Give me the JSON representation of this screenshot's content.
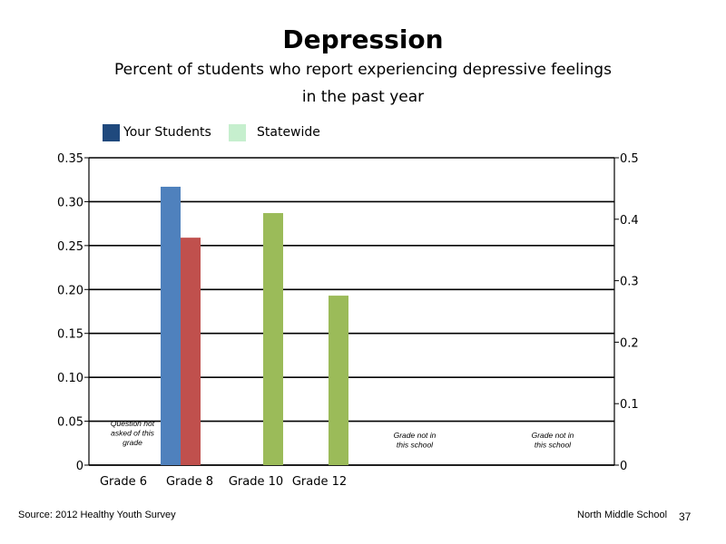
{
  "title": "Depression",
  "subtitle_line1": "Percent of students who report experiencing depressive feelings",
  "subtitle_line2": "in the past year",
  "legend": [
    {
      "label": "Your Students",
      "color": "#1f497d"
    },
    {
      "label": "Statewide",
      "color": "#c6efce"
    }
  ],
  "footer": {
    "source": "Source: 2012 Healthy Youth Survey",
    "school": "North Middle School",
    "page": "37"
  },
  "chart_data": {
    "type": "bar",
    "categories": [
      "Grade 6",
      "Grade 8",
      "Grade 10",
      "Grade 12"
    ],
    "bars": [
      {
        "category": "Grade 8",
        "value": 0.317,
        "color": "#4f81bd"
      },
      {
        "category": "Grade 8",
        "value": 0.259,
        "color": "#c0504d"
      },
      {
        "category": "Grade 10",
        "value": 0.287,
        "color": "#9bbb59"
      },
      {
        "category": "Grade 12",
        "value": 0.193,
        "color": "#9bbb59"
      }
    ],
    "ylim": [
      0,
      0.35
    ],
    "yticks": [
      "0",
      "0.05",
      "0.10",
      "0.15",
      "0.20",
      "0.25",
      "0.30",
      "0.35"
    ],
    "y2lim": [
      0,
      0.5
    ],
    "y2ticks": [
      "0",
      "0.1",
      "0.2",
      "0.3",
      "0.4",
      "0.5"
    ],
    "annotations": [
      {
        "lines": [
          "Question not",
          "asked of this",
          "grade"
        ]
      },
      {
        "lines": [
          "Grade not in",
          "this school"
        ]
      },
      {
        "lines": [
          "Grade not in",
          "this school"
        ]
      }
    ],
    "grid": true
  }
}
